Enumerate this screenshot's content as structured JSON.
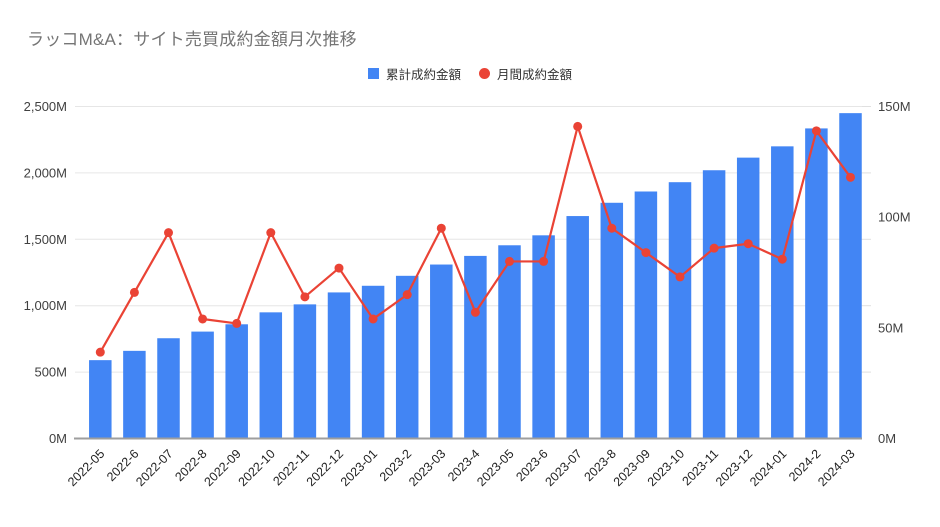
{
  "header": {
    "title": "ラッコM&A：サイト売買成約金額月次推移"
  },
  "chart_data": {
    "type": "bar",
    "subtype": "bar+line combo, dual y-axis",
    "title": "ラッコM&A：サイト売買成約金額月次推移",
    "categories": [
      "2022-05",
      "2022-6",
      "2022-07",
      "2022-8",
      "2022-09",
      "2022-10",
      "2022-11",
      "2022-12",
      "2023-01",
      "2023-2",
      "2023-03",
      "2023-4",
      "2023-05",
      "2023-6",
      "2023-07",
      "2023-8",
      "2023-09",
      "2023-10",
      "2023-11",
      "2023-12",
      "2024-01",
      "2024-2",
      "2024-03"
    ],
    "series": [
      {
        "name": "累計成約金額",
        "type": "bar",
        "axis": "left",
        "color": "#4285f4",
        "values": [
          590,
          660,
          755,
          805,
          860,
          950,
          1010,
          1100,
          1150,
          1225,
          1310,
          1375,
          1455,
          1530,
          1675,
          1775,
          1860,
          1930,
          2020,
          2115,
          2200,
          2335,
          2450
        ]
      },
      {
        "name": "月間成約金額",
        "type": "line",
        "axis": "right",
        "color": "#ea4335",
        "values": [
          39,
          66,
          93,
          54,
          52,
          93,
          64,
          77,
          54,
          65,
          95,
          57,
          80,
          80,
          141,
          95,
          84,
          73,
          86,
          88,
          81,
          139,
          118
        ]
      }
    ],
    "left_axis": {
      "min": 0,
      "max": 2500,
      "tick_values": [
        0,
        500,
        1000,
        1500,
        2000,
        2500
      ],
      "tick_labels": [
        "0M",
        "500M",
        "1,000M",
        "1,500M",
        "2,000M",
        "2,500M"
      ]
    },
    "right_axis": {
      "min": 0,
      "max": 150,
      "tick_values": [
        0,
        50,
        100,
        150
      ],
      "tick_labels": [
        "0M",
        "50M",
        "100M",
        "150M"
      ]
    },
    "grid": true,
    "legend_position": "top-center",
    "colors": {
      "grid": "#e6e6e6",
      "baseline": "#9e9e9e",
      "minor_tick": "#e0e0e0",
      "axis_text": "#404040",
      "x_label_text": "#1f1f1f",
      "title_text": "#757575"
    }
  }
}
